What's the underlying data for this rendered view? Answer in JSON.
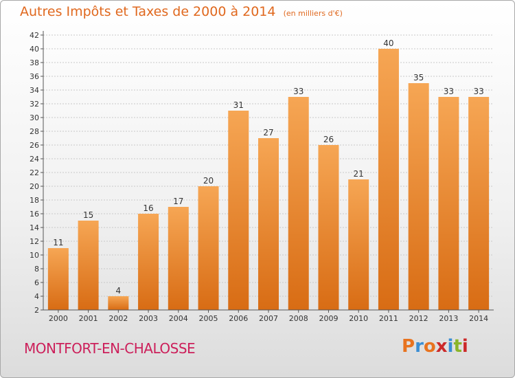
{
  "header": {
    "title": "Autres Impôts et Taxes de 2000 à 2014",
    "unit": "(en milliers d'€)"
  },
  "footer": {
    "commune": "MONTFORT-EN-CHALOSSE",
    "logo_text": "Proxiti",
    "logo_colors": [
      "#e8731f",
      "#3a8ed4",
      "#e8731f",
      "#cc2a2a",
      "#3a8ed4",
      "#8bb52a",
      "#cc2a2a"
    ]
  },
  "colors": {
    "bar_top": "#f6a654",
    "bar_bottom": "#d86c14",
    "grid": "#c8c8c8",
    "title": "#e0681e"
  },
  "chart_data": {
    "type": "bar",
    "title": "Autres Impôts et Taxes de 2000 à 2014",
    "subtitle": "(en milliers d'€)",
    "xlabel": "",
    "ylabel": "",
    "categories": [
      "2000",
      "2001",
      "2002",
      "2003",
      "2004",
      "2005",
      "2006",
      "2007",
      "2008",
      "2009",
      "2010",
      "2011",
      "2012",
      "2013",
      "2014"
    ],
    "values": [
      11,
      15,
      4,
      16,
      17,
      20,
      31,
      27,
      33,
      26,
      21,
      40,
      35,
      33,
      33
    ],
    "ylim": [
      2,
      42
    ],
    "yticks": [
      2,
      4,
      6,
      8,
      10,
      12,
      14,
      16,
      18,
      20,
      22,
      24,
      26,
      28,
      30,
      32,
      34,
      36,
      38,
      40,
      42
    ],
    "grid": true,
    "data_labels": true
  }
}
